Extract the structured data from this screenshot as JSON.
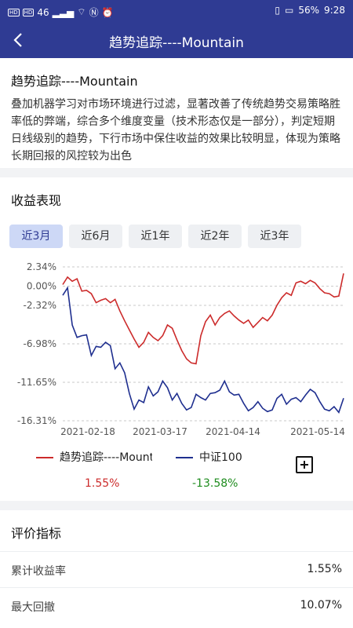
{
  "status_bar": {
    "left_badges": [
      "HD",
      "HD"
    ],
    "signal_text": "46",
    "battery": "56%",
    "time": "9:28"
  },
  "app_bar": {
    "title": "趋势追踪----Mountain"
  },
  "strategy": {
    "name": "趋势追踪----Mountain",
    "description": "叠加机器学习对市场环境进行过滤，显著改善了传统趋势交易策略胜率低的弊端，综合多个维度变量（技术形态仅是一部分），判定短期日线级别的趋势，下行市场中保住收益的效果比较明显，体现为策略长期回报的风控较为出色"
  },
  "performance": {
    "section_title": "收益表现",
    "tabs": [
      "近3月",
      "近6月",
      "近1年",
      "近2年",
      "近3年"
    ],
    "active_tab": "近3月",
    "legend": {
      "series1_label": "趋势追踪----Mountain",
      "series2_label": "中证100",
      "series1_value": "1.55%",
      "series2_value": "-13.58%",
      "add_icon": "plus-square-icon"
    }
  },
  "evaluation": {
    "section_title": "评价指标",
    "metrics": [
      {
        "label": "累计收益率",
        "value": "1.55%"
      },
      {
        "label": "最大回撤",
        "value": "10.07%"
      }
    ]
  },
  "chart_data": {
    "type": "line",
    "y_ticks": [
      "2.34%",
      "0.00%",
      "-2.32%",
      "-6.98%",
      "-11.65%",
      "-16.31%"
    ],
    "x_ticks": [
      "2021-02-18",
      "2021-03-17",
      "2021-04-14",
      "2021-05-14"
    ],
    "ylim": [
      -16.31,
      2.34
    ],
    "grid": true,
    "colors": {
      "strategy": "#cc2b2b",
      "benchmark": "#1f2f8f",
      "grid": "#c9c9c9",
      "axis_text": "#555555"
    },
    "series": [
      {
        "name": "趋势追踪----Mountain",
        "values": [
          0.2,
          1.1,
          0.6,
          0.9,
          -0.6,
          -0.5,
          -0.9,
          -2.0,
          -1.7,
          -1.5,
          -2.0,
          -1.6,
          -3.0,
          -4.2,
          -5.3,
          -6.4,
          -7.4,
          -6.8,
          -5.6,
          -6.2,
          -6.6,
          -6.0,
          -4.7,
          -5.1,
          -6.5,
          -7.8,
          -8.8,
          -9.3,
          -9.4,
          -6.0,
          -4.3,
          -3.5,
          -4.7,
          -3.8,
          -3.3,
          -3.0,
          -3.6,
          -4.1,
          -4.5,
          -4.1,
          -5.0,
          -4.4,
          -3.8,
          -4.2,
          -3.5,
          -2.3,
          -1.4,
          -0.8,
          -1.1,
          0.4,
          0.6,
          0.3,
          0.7,
          0.4,
          -0.3,
          -0.8,
          -0.9,
          -1.3,
          -1.2,
          1.55
        ]
      },
      {
        "name": "中证100",
        "values": [
          -1.1,
          -0.2,
          -4.7,
          -6.2,
          -6.0,
          -5.9,
          -8.4,
          -7.3,
          -7.4,
          -6.8,
          -7.2,
          -10.0,
          -9.3,
          -10.5,
          -13.0,
          -14.9,
          -13.8,
          -14.1,
          -12.2,
          -13.3,
          -12.8,
          -11.5,
          -12.3,
          -13.8,
          -13.0,
          -14.2,
          -15.0,
          -14.7,
          -13.1,
          -13.5,
          -13.8,
          -13.0,
          -12.9,
          -12.6,
          -11.5,
          -12.8,
          -13.2,
          -13.1,
          -14.2,
          -15.1,
          -14.7,
          -14.0,
          -14.8,
          -15.2,
          -15.0,
          -13.6,
          -13.1,
          -14.3,
          -13.7,
          -13.5,
          -14.0,
          -13.2,
          -12.5,
          -12.9,
          -14.0,
          -14.9,
          -15.1,
          -14.6,
          -15.3,
          -13.58
        ]
      }
    ]
  }
}
